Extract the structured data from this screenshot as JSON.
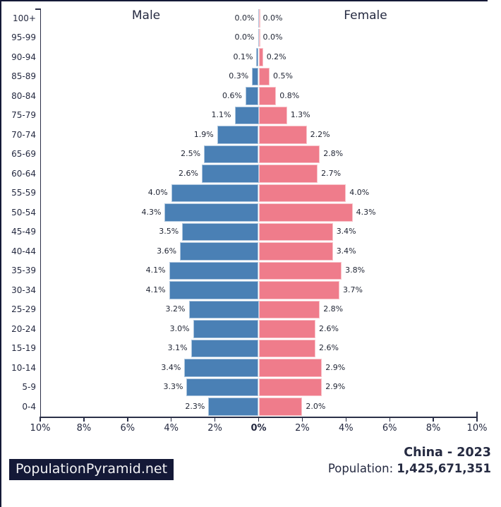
{
  "footer": {
    "site": "PopulationPyramid.net",
    "title": "China - 2023",
    "population_label": "Population: ",
    "population_value": "1,425,671,351"
  },
  "chart_data": {
    "type": "bar",
    "subtype": "population-pyramid",
    "title": "China - 2023",
    "male_header": "Male",
    "female_header": "Female",
    "categories": [
      "100+",
      "95-99",
      "90-94",
      "85-89",
      "80-84",
      "75-79",
      "70-74",
      "65-69",
      "60-64",
      "55-59",
      "50-54",
      "45-49",
      "40-44",
      "35-39",
      "30-34",
      "25-29",
      "20-24",
      "15-19",
      "10-14",
      "5-9",
      "0-4"
    ],
    "series": [
      {
        "name": "Male",
        "color": "#4a80b5",
        "values": [
          0.0,
          0.0,
          0.1,
          0.3,
          0.6,
          1.1,
          1.9,
          2.5,
          2.6,
          4.0,
          4.3,
          3.5,
          3.6,
          4.1,
          4.1,
          3.2,
          3.0,
          3.1,
          3.4,
          3.3,
          2.3
        ],
        "labels": [
          "0.0%",
          "0.0%",
          "0.1%",
          "0.3%",
          "0.6%",
          "1.1%",
          "1.9%",
          "2.5%",
          "2.6%",
          "4.0%",
          "4.3%",
          "3.5%",
          "3.6%",
          "4.1%",
          "4.1%",
          "3.2%",
          "3.0%",
          "3.1%",
          "3.4%",
          "3.3%",
          "2.3%"
        ]
      },
      {
        "name": "Female",
        "color": "#ef7c8b",
        "values": [
          0.0,
          0.0,
          0.2,
          0.5,
          0.8,
          1.3,
          2.2,
          2.8,
          2.7,
          4.0,
          4.3,
          3.4,
          3.4,
          3.8,
          3.7,
          2.8,
          2.6,
          2.6,
          2.9,
          2.9,
          2.0
        ],
        "labels": [
          "0.0%",
          "0.0%",
          "0.2%",
          "0.5%",
          "0.8%",
          "1.3%",
          "2.2%",
          "2.8%",
          "2.7%",
          "4.0%",
          "4.3%",
          "3.4%",
          "3.4%",
          "3.8%",
          "3.7%",
          "2.8%",
          "2.6%",
          "2.6%",
          "2.9%",
          "2.9%",
          "2.0%"
        ]
      }
    ],
    "x_axis": {
      "unit": "%",
      "xlim": [
        -10,
        10
      ],
      "ticks": [
        {
          "value": -10,
          "label": "10%"
        },
        {
          "value": -8,
          "label": "8%"
        },
        {
          "value": -6,
          "label": "6%"
        },
        {
          "value": -4,
          "label": "4%"
        },
        {
          "value": -2,
          "label": "2%"
        },
        {
          "value": 0,
          "label": "0%"
        },
        {
          "value": 2,
          "label": "2%"
        },
        {
          "value": 4,
          "label": "4%"
        },
        {
          "value": 6,
          "label": "6%"
        },
        {
          "value": 8,
          "label": "8%"
        },
        {
          "value": 10,
          "label": "10%"
        }
      ]
    },
    "grid": false,
    "legend_position": "top-inline"
  }
}
